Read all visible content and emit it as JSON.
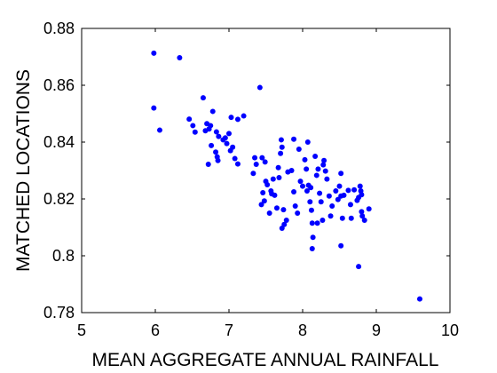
{
  "chart_data": {
    "type": "scatter",
    "xlabel": "MEAN AGGREGATE ANNUAL RAINFALL",
    "ylabel": "MATCHED LOCATIONS",
    "xlim": [
      5,
      10
    ],
    "ylim": [
      0.78,
      0.88
    ],
    "xticks": [
      "5",
      "6",
      "7",
      "8",
      "9",
      "10"
    ],
    "yticks": [
      "0.78",
      "0.8",
      "0.82",
      "0.84",
      "0.86",
      "0.88"
    ],
    "grid": false,
    "marker_color": "#0000ff",
    "points": [
      [
        5.98,
        0.8713
      ],
      [
        6.33,
        0.8697
      ],
      [
        5.98,
        0.852
      ],
      [
        6.06,
        0.8442
      ],
      [
        7.42,
        0.8592
      ],
      [
        6.65,
        0.8556
      ],
      [
        6.46,
        0.8481
      ],
      [
        6.51,
        0.8458
      ],
      [
        6.54,
        0.8435
      ],
      [
        6.68,
        0.844
      ],
      [
        6.7,
        0.8465
      ],
      [
        6.75,
        0.8458
      ],
      [
        6.78,
        0.8508
      ],
      [
        6.73,
        0.8446
      ],
      [
        6.83,
        0.8436
      ],
      [
        6.86,
        0.842
      ],
      [
        6.92,
        0.8408
      ],
      [
        6.95,
        0.8415
      ],
      [
        6.97,
        0.8395
      ],
      [
        7.03,
        0.8487
      ],
      [
        7.12,
        0.848
      ],
      [
        7.2,
        0.8492
      ],
      [
        7.0,
        0.843
      ],
      [
        7.02,
        0.837
      ],
      [
        6.76,
        0.8388
      ],
      [
        6.82,
        0.8365
      ],
      [
        6.84,
        0.8348
      ],
      [
        6.72,
        0.8322
      ],
      [
        6.85,
        0.8335
      ],
      [
        7.08,
        0.8342
      ],
      [
        7.12,
        0.8323
      ],
      [
        7.05,
        0.8382
      ],
      [
        7.35,
        0.8345
      ],
      [
        7.37,
        0.8322
      ],
      [
        7.33,
        0.829
      ],
      [
        7.45,
        0.8345
      ],
      [
        7.49,
        0.833
      ],
      [
        7.5,
        0.8262
      ],
      [
        7.52,
        0.825
      ],
      [
        7.46,
        0.8222
      ],
      [
        7.48,
        0.8193
      ],
      [
        7.44,
        0.818
      ],
      [
        7.57,
        0.8228
      ],
      [
        7.6,
        0.827
      ],
      [
        7.58,
        0.8218
      ],
      [
        7.55,
        0.815
      ],
      [
        7.62,
        0.8213
      ],
      [
        7.68,
        0.8275
      ],
      [
        7.71,
        0.8408
      ],
      [
        7.72,
        0.8382
      ],
      [
        7.7,
        0.836
      ],
      [
        7.67,
        0.831
      ],
      [
        7.65,
        0.8168
      ],
      [
        7.74,
        0.8162
      ],
      [
        7.78,
        0.8125
      ],
      [
        7.72,
        0.8097
      ],
      [
        7.75,
        0.811
      ],
      [
        7.8,
        0.8295
      ],
      [
        7.85,
        0.83
      ],
      [
        7.88,
        0.8225
      ],
      [
        7.88,
        0.841
      ],
      [
        7.9,
        0.8175
      ],
      [
        7.93,
        0.815
      ],
      [
        7.95,
        0.8375
      ],
      [
        7.97,
        0.8262
      ],
      [
        8.0,
        0.8245
      ],
      [
        8.03,
        0.8338
      ],
      [
        8.05,
        0.8305
      ],
      [
        8.07,
        0.84
      ],
      [
        8.06,
        0.8228
      ],
      [
        8.08,
        0.8248
      ],
      [
        8.1,
        0.819
      ],
      [
        8.11,
        0.824
      ],
      [
        8.12,
        0.816
      ],
      [
        8.13,
        0.8115
      ],
      [
        8.14,
        0.8065
      ],
      [
        8.13,
        0.8025
      ],
      [
        8.17,
        0.835
      ],
      [
        8.19,
        0.8283
      ],
      [
        8.21,
        0.8305
      ],
      [
        8.23,
        0.822
      ],
      [
        8.25,
        0.819
      ],
      [
        8.2,
        0.8115
      ],
      [
        8.27,
        0.8125
      ],
      [
        8.29,
        0.8335
      ],
      [
        8.28,
        0.832
      ],
      [
        8.31,
        0.8298
      ],
      [
        8.33,
        0.827
      ],
      [
        8.36,
        0.821
      ],
      [
        8.38,
        0.814
      ],
      [
        8.4,
        0.8175
      ],
      [
        8.45,
        0.8228
      ],
      [
        8.48,
        0.8198
      ],
      [
        8.52,
        0.821
      ],
      [
        8.5,
        0.8245
      ],
      [
        8.52,
        0.829
      ],
      [
        8.54,
        0.8132
      ],
      [
        8.52,
        0.8035
      ],
      [
        8.56,
        0.8213
      ],
      [
        8.62,
        0.823
      ],
      [
        8.65,
        0.818
      ],
      [
        8.66,
        0.8132
      ],
      [
        8.7,
        0.8232
      ],
      [
        8.74,
        0.8195
      ],
      [
        8.76,
        0.8205
      ],
      [
        8.78,
        0.8245
      ],
      [
        8.79,
        0.8228
      ],
      [
        8.8,
        0.8215
      ],
      [
        8.8,
        0.8155
      ],
      [
        8.81,
        0.814
      ],
      [
        8.84,
        0.8125
      ],
      [
        8.9,
        0.8165
      ],
      [
        8.76,
        0.7962
      ],
      [
        9.59,
        0.7848
      ]
    ]
  }
}
